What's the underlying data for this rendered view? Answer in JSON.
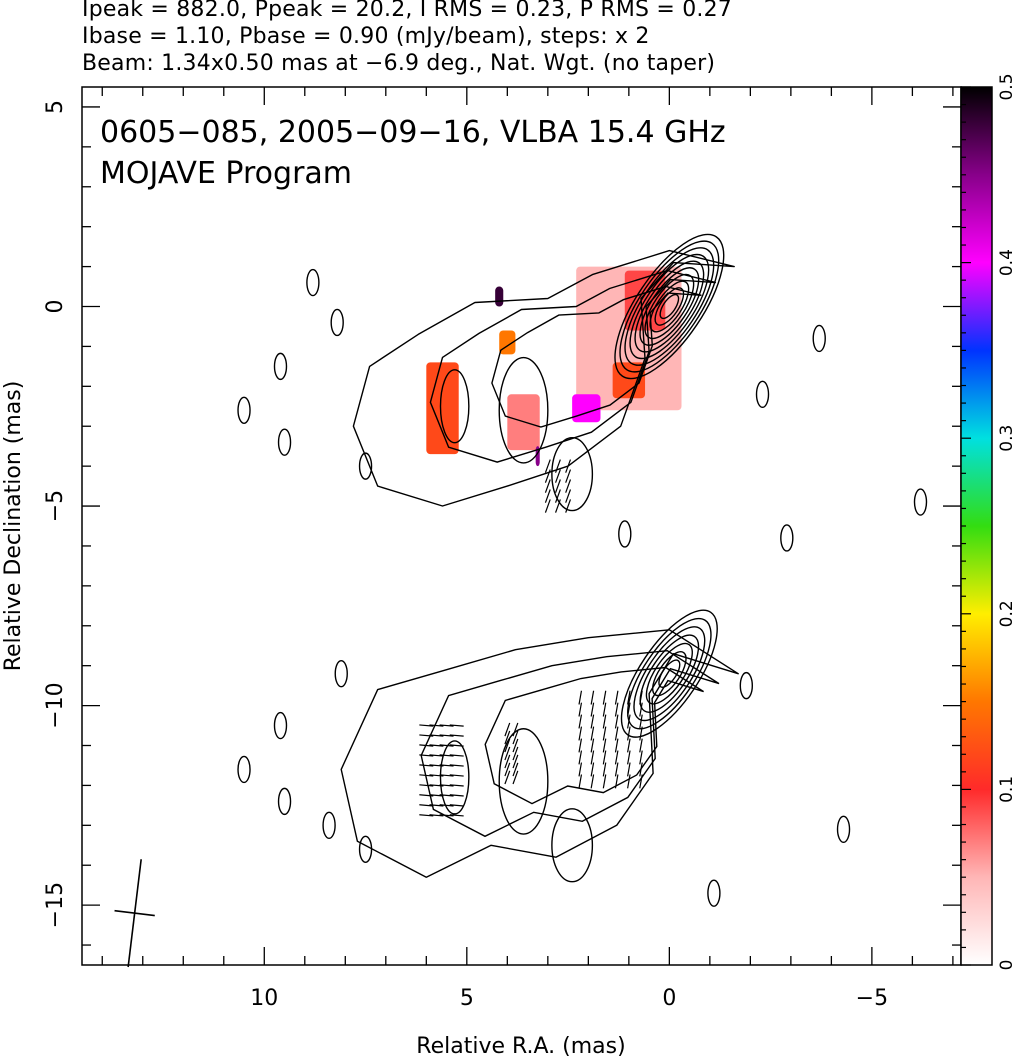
{
  "header": {
    "line1": "Ipeak = 882.0, Ppeak = 20.2, I RMS = 0.23, P RMS = 0.27",
    "line2": "Ibase = 1.10, Pbase = 0.90 (mJy/beam), steps: x 2",
    "line3": "Beam: 1.34x0.50 mas at −6.9 deg., Nat. Wgt. (no taper)"
  },
  "chart_data": {
    "type": "heatmap",
    "annotation_lines": [
      "0605−085, 2005−09−16, VLBA 15.4 GHz",
      "MOJAVE Program"
    ],
    "xlabel": "Relative R.A. (mas)",
    "ylabel": "Relative Declination (mas)",
    "xlim": [
      14.5,
      -7.2
    ],
    "ylim": [
      -16.5,
      5.5
    ],
    "x_ticks": [
      10,
      5,
      0,
      -5
    ],
    "x_tick_labels": [
      "10",
      "5",
      "0",
      "−5"
    ],
    "y_ticks": [
      5,
      0,
      -5,
      -10,
      -15
    ],
    "y_tick_labels": [
      "5",
      "0",
      "−5",
      "−10",
      "−15"
    ],
    "colorbar": {
      "range": [
        0,
        0.5
      ],
      "ticks": [
        0,
        0.1,
        0.2,
        0.3,
        0.4,
        0.5
      ],
      "tick_labels": [
        "0",
        "0.1",
        "0.2",
        "0.3",
        "0.4",
        "0.5"
      ],
      "colors": [
        "#ffffff",
        "#ffb6b6",
        "#ff2a2a",
        "#ff7700",
        "#ffee00",
        "#33dd11",
        "#00e0e0",
        "#0033ff",
        "#ff00ff",
        "#88008a",
        "#000000"
      ]
    },
    "images": [
      {
        "name": "upper",
        "contour_center": [
          0,
          0
        ],
        "contour_levels_count": 10,
        "fracpol_patches": [
          {
            "x": [
              -0.3,
              2.3
            ],
            "y": [
              -2.6,
              1.0
            ],
            "value": 0.05
          },
          {
            "x": [
              0.1,
              1.1
            ],
            "y": [
              -0.6,
              0.9
            ],
            "value": 0.09
          },
          {
            "x": [
              0.6,
              1.4
            ],
            "y": [
              -2.3,
              -1.4
            ],
            "value": 0.12
          },
          {
            "x": [
              1.7,
              2.4
            ],
            "y": [
              -2.9,
              -2.2
            ],
            "value": 0.4
          },
          {
            "x": [
              3.2,
              4.0
            ],
            "y": [
              -3.6,
              -2.2
            ],
            "value": 0.07
          },
          {
            "x": [
              3.8,
              4.2
            ],
            "y": [
              -1.2,
              -0.6
            ],
            "value": 0.15
          },
          {
            "x": [
              4.1,
              4.3
            ],
            "y": [
              0.0,
              0.5
            ],
            "value": 0.48
          },
          {
            "x": [
              5.2,
              6.0
            ],
            "y": [
              -3.7,
              -1.4
            ],
            "value": 0.12
          },
          {
            "x": [
              3.2,
              3.3
            ],
            "y": [
              -4.0,
              -3.5
            ],
            "value": 0.45
          }
        ]
      },
      {
        "name": "lower",
        "contour_center": [
          0,
          -9.2
        ],
        "contour_levels_count": 7
      }
    ],
    "beam": {
      "major_mas": 1.34,
      "minor_mas": 0.5,
      "pa_deg": -6.9,
      "center": [
        13.2,
        -15.2
      ]
    }
  }
}
